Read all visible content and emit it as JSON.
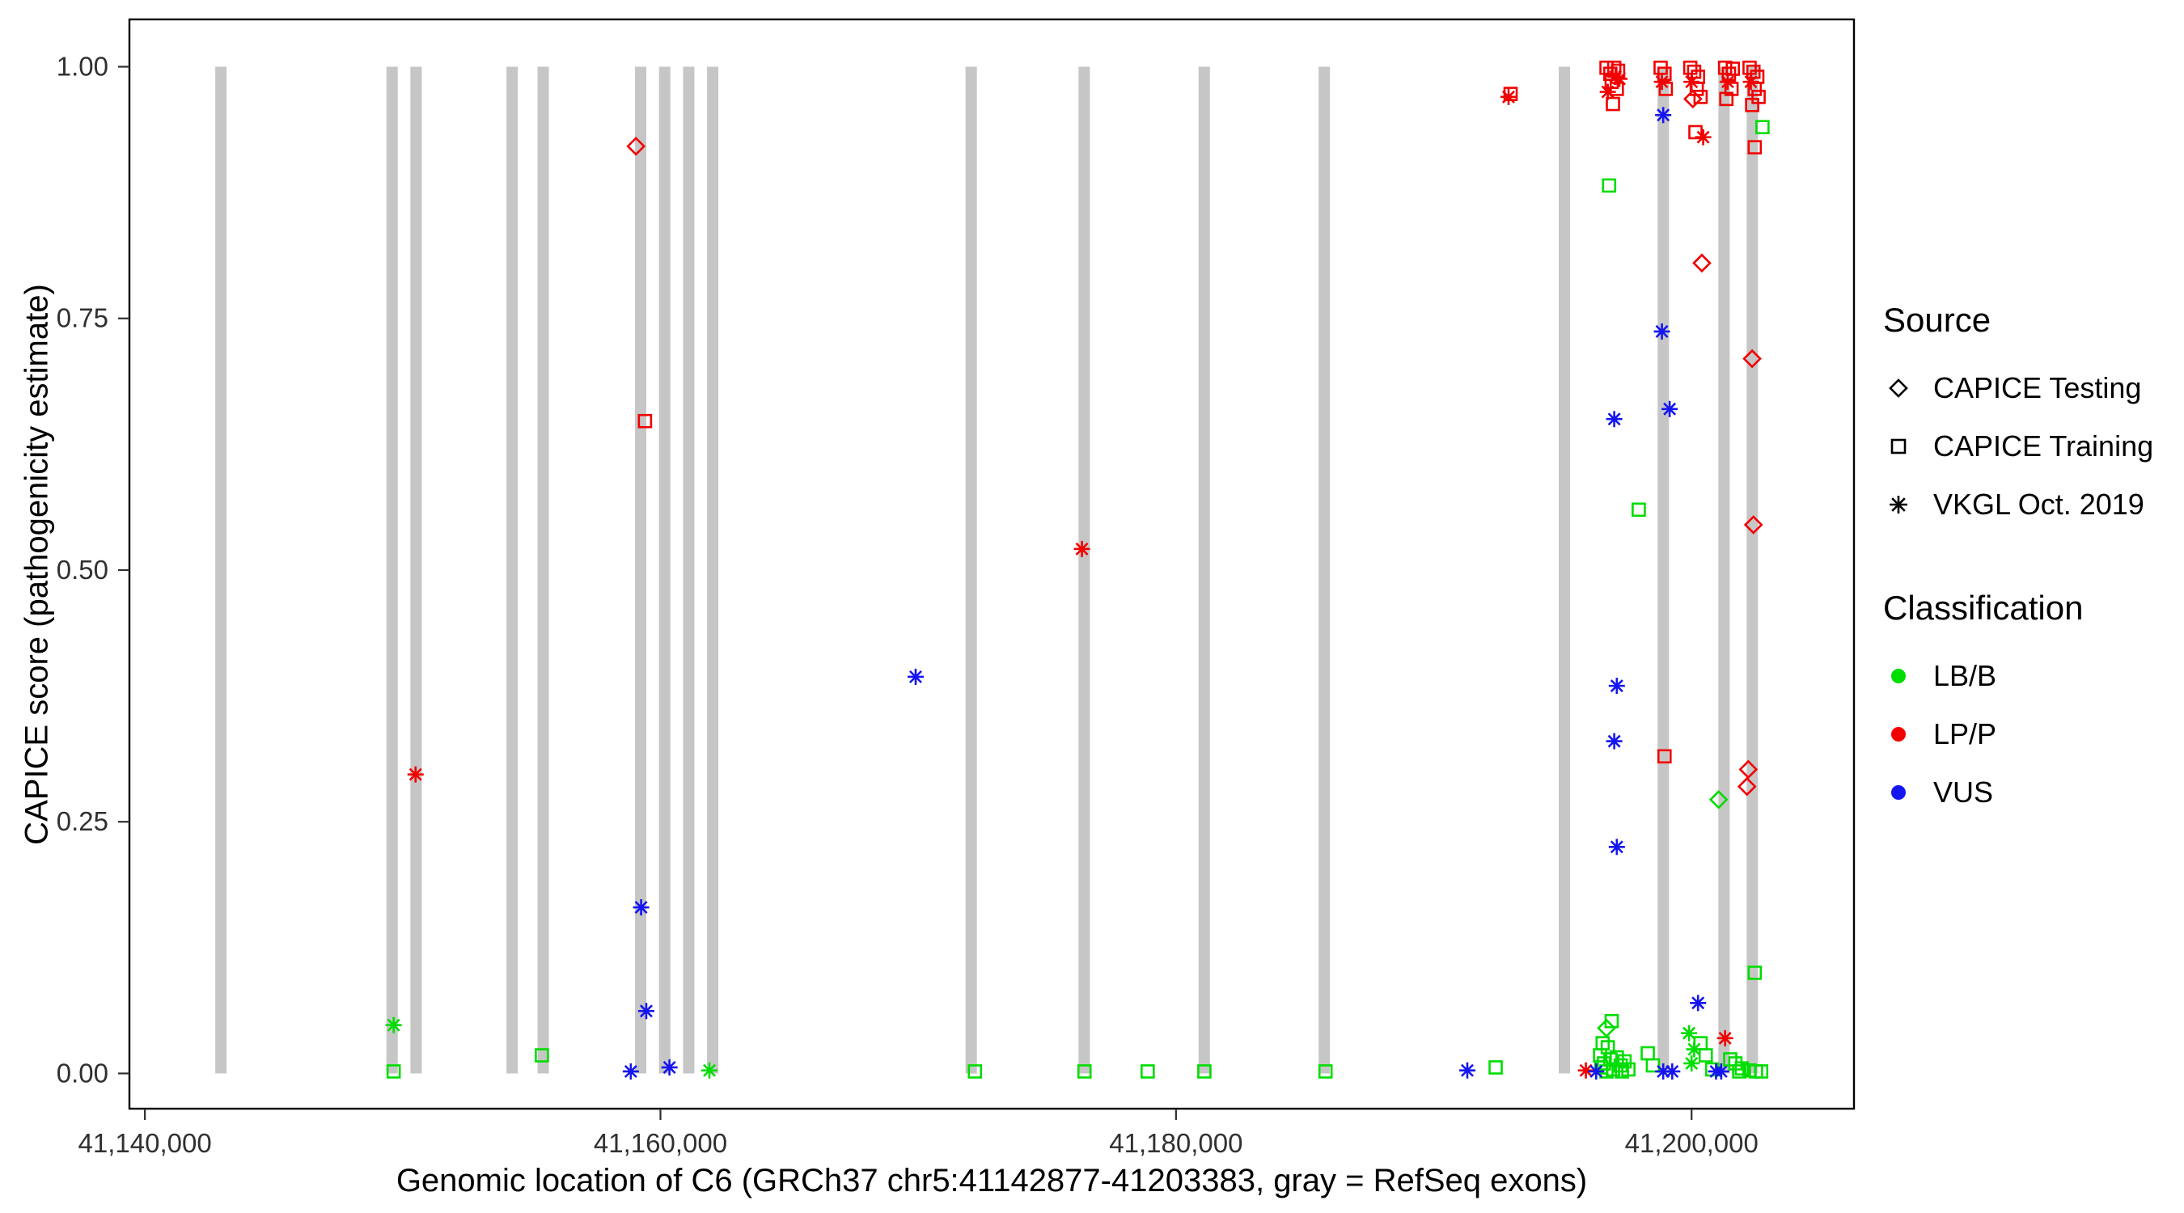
{
  "chart_data": {
    "type": "scatter",
    "title": "",
    "xlabel": "Genomic location of C6 (GRCh37 chr5:41142877-41203383, gray = RefSeq exons)",
    "ylabel": "CAPICE score (pathogenicity estimate)",
    "xlim": [
      41139400,
      41206300
    ],
    "ylim": [
      -0.035,
      1.047
    ],
    "grid": false,
    "xticks": [
      {
        "value": 41140000,
        "label": "41,140,000"
      },
      {
        "value": 41160000,
        "label": "41,160,000"
      },
      {
        "value": 41180000,
        "label": "41,180,000"
      },
      {
        "value": 41200000,
        "label": "41,200,000"
      }
    ],
    "yticks": [
      {
        "value": 0.0,
        "label": "0.00"
      },
      {
        "value": 0.25,
        "label": "0.25"
      },
      {
        "value": 0.5,
        "label": "0.50"
      },
      {
        "value": 0.75,
        "label": "0.75"
      },
      {
        "value": 1.0,
        "label": "1.00"
      }
    ],
    "exon_color": "#c6c6c6",
    "exon_half_width_bp": 220,
    "exons": [
      41142950,
      41149589,
      41150521,
      41154247,
      41155452,
      41159233,
      41160164,
      41161096,
      41162027,
      41172055,
      41176438,
      41181096,
      41185753,
      41195068,
      41198904,
      41201260,
      41202356
    ],
    "colors": {
      "LB/B": "#00dd00",
      "LP/P": "#f20000",
      "VUS": "#1515f0"
    },
    "shapes": {
      "testing": "diamond",
      "training": "square",
      "vkgl": "asterisk"
    },
    "legend": {
      "source": {
        "title": "Source",
        "items": [
          {
            "label": "CAPICE Testing",
            "shape": "diamond"
          },
          {
            "label": "CAPICE Training",
            "shape": "square"
          },
          {
            "label": "VKGL Oct. 2019",
            "shape": "asterisk"
          }
        ]
      },
      "classification": {
        "title": "Classification",
        "items": [
          {
            "label": "LB/B",
            "color": "#00dd00"
          },
          {
            "label": "LP/P",
            "color": "#f20000"
          },
          {
            "label": "VUS",
            "color": "#1515f0"
          }
        ]
      }
    },
    "points": [
      {
        "x": 41149650,
        "y": 0.048,
        "s": "vkgl",
        "c": "LB/B"
      },
      {
        "x": 41149650,
        "y": 0.002,
        "s": "training",
        "c": "LB/B"
      },
      {
        "x": 41150500,
        "y": 0.297,
        "s": "vkgl",
        "c": "LP/P"
      },
      {
        "x": 41155400,
        "y": 0.018,
        "s": "training",
        "c": "LB/B"
      },
      {
        "x": 41159050,
        "y": 0.921,
        "s": "testing",
        "c": "LP/P"
      },
      {
        "x": 41159400,
        "y": 0.648,
        "s": "training",
        "c": "LP/P"
      },
      {
        "x": 41159250,
        "y": 0.165,
        "s": "vkgl",
        "c": "VUS"
      },
      {
        "x": 41159450,
        "y": 0.062,
        "s": "vkgl",
        "c": "VUS"
      },
      {
        "x": 41158850,
        "y": 0.002,
        "s": "vkgl",
        "c": "VUS"
      },
      {
        "x": 41160350,
        "y": 0.006,
        "s": "vkgl",
        "c": "VUS"
      },
      {
        "x": 41161900,
        "y": 0.003,
        "s": "vkgl",
        "c": "LB/B"
      },
      {
        "x": 41169900,
        "y": 0.394,
        "s": "vkgl",
        "c": "VUS"
      },
      {
        "x": 41172200,
        "y": 0.002,
        "s": "training",
        "c": "LB/B"
      },
      {
        "x": 41176350,
        "y": 0.521,
        "s": "vkgl",
        "c": "LP/P"
      },
      {
        "x": 41176450,
        "y": 0.002,
        "s": "training",
        "c": "LB/B"
      },
      {
        "x": 41178900,
        "y": 0.002,
        "s": "training",
        "c": "LB/B"
      },
      {
        "x": 41181100,
        "y": 0.002,
        "s": "training",
        "c": "LB/B"
      },
      {
        "x": 41185800,
        "y": 0.002,
        "s": "training",
        "c": "LB/B"
      },
      {
        "x": 41191300,
        "y": 0.003,
        "s": "vkgl",
        "c": "VUS"
      },
      {
        "x": 41192400,
        "y": 0.006,
        "s": "training",
        "c": "LB/B"
      },
      {
        "x": 41192900,
        "y": 0.97,
        "s": "vkgl",
        "c": "LP/P"
      },
      {
        "x": 41192980,
        "y": 0.973,
        "s": "training",
        "c": "LP/P"
      },
      {
        "x": 41196700,
        "y": 0.999,
        "s": "training",
        "c": "LP/P"
      },
      {
        "x": 41196850,
        "y": 0.993,
        "s": "training",
        "c": "LP/P"
      },
      {
        "x": 41197000,
        "y": 0.999,
        "s": "training",
        "c": "LP/P"
      },
      {
        "x": 41197150,
        "y": 0.996,
        "s": "training",
        "c": "LP/P"
      },
      {
        "x": 41196900,
        "y": 0.985,
        "s": "training",
        "c": "LP/P"
      },
      {
        "x": 41197100,
        "y": 0.978,
        "s": "training",
        "c": "LP/P"
      },
      {
        "x": 41196750,
        "y": 0.975,
        "s": "vkgl",
        "c": "LP/P"
      },
      {
        "x": 41197050,
        "y": 0.99,
        "s": "vkgl",
        "c": "LP/P"
      },
      {
        "x": 41196950,
        "y": 0.963,
        "s": "training",
        "c": "LP/P"
      },
      {
        "x": 41197200,
        "y": 0.988,
        "s": "vkgl",
        "c": "LP/P"
      },
      {
        "x": 41198800,
        "y": 0.999,
        "s": "training",
        "c": "LP/P"
      },
      {
        "x": 41198950,
        "y": 0.993,
        "s": "training",
        "c": "LP/P"
      },
      {
        "x": 41198850,
        "y": 0.985,
        "s": "vkgl",
        "c": "LP/P"
      },
      {
        "x": 41199000,
        "y": 0.978,
        "s": "training",
        "c": "LP/P"
      },
      {
        "x": 41198900,
        "y": 0.952,
        "s": "vkgl",
        "c": "VUS"
      },
      {
        "x": 41199950,
        "y": 0.999,
        "s": "training",
        "c": "LP/P"
      },
      {
        "x": 41200100,
        "y": 0.995,
        "s": "training",
        "c": "LP/P"
      },
      {
        "x": 41200250,
        "y": 0.99,
        "s": "training",
        "c": "LP/P"
      },
      {
        "x": 41200000,
        "y": 0.985,
        "s": "vkgl",
        "c": "LP/P"
      },
      {
        "x": 41200200,
        "y": 0.978,
        "s": "training",
        "c": "LP/P"
      },
      {
        "x": 41200350,
        "y": 0.97,
        "s": "training",
        "c": "LP/P"
      },
      {
        "x": 41200050,
        "y": 0.968,
        "s": "testing",
        "c": "LP/P"
      },
      {
        "x": 41200150,
        "y": 0.935,
        "s": "training",
        "c": "LP/P"
      },
      {
        "x": 41200450,
        "y": 0.93,
        "s": "vkgl",
        "c": "LP/P"
      },
      {
        "x": 41201300,
        "y": 0.999,
        "s": "training",
        "c": "LP/P"
      },
      {
        "x": 41201450,
        "y": 0.993,
        "s": "training",
        "c": "LP/P"
      },
      {
        "x": 41201600,
        "y": 0.998,
        "s": "training",
        "c": "LP/P"
      },
      {
        "x": 41201400,
        "y": 0.985,
        "s": "vkgl",
        "c": "LP/P"
      },
      {
        "x": 41201550,
        "y": 0.978,
        "s": "training",
        "c": "LP/P"
      },
      {
        "x": 41201350,
        "y": 0.968,
        "s": "training",
        "c": "LP/P"
      },
      {
        "x": 41202250,
        "y": 0.999,
        "s": "training",
        "c": "LP/P"
      },
      {
        "x": 41202400,
        "y": 0.995,
        "s": "training",
        "c": "LP/P"
      },
      {
        "x": 41202550,
        "y": 0.99,
        "s": "training",
        "c": "LP/P"
      },
      {
        "x": 41202300,
        "y": 0.985,
        "s": "vkgl",
        "c": "LP/P"
      },
      {
        "x": 41202450,
        "y": 0.978,
        "s": "training",
        "c": "LP/P"
      },
      {
        "x": 41202600,
        "y": 0.97,
        "s": "training",
        "c": "LP/P"
      },
      {
        "x": 41202350,
        "y": 0.962,
        "s": "training",
        "c": "LP/P"
      },
      {
        "x": 41202450,
        "y": 0.92,
        "s": "training",
        "c": "LP/P"
      },
      {
        "x": 41202750,
        "y": 0.94,
        "s": "training",
        "c": "LB/B"
      },
      {
        "x": 41196800,
        "y": 0.882,
        "s": "training",
        "c": "LB/B"
      },
      {
        "x": 41200400,
        "y": 0.805,
        "s": "testing",
        "c": "LP/P"
      },
      {
        "x": 41198850,
        "y": 0.737,
        "s": "vkgl",
        "c": "VUS"
      },
      {
        "x": 41202350,
        "y": 0.71,
        "s": "testing",
        "c": "LP/P"
      },
      {
        "x": 41197000,
        "y": 0.65,
        "s": "vkgl",
        "c": "VUS"
      },
      {
        "x": 41199150,
        "y": 0.66,
        "s": "vkgl",
        "c": "VUS"
      },
      {
        "x": 41197950,
        "y": 0.56,
        "s": "training",
        "c": "LB/B"
      },
      {
        "x": 41202400,
        "y": 0.545,
        "s": "testing",
        "c": "LP/P"
      },
      {
        "x": 41197100,
        "y": 0.385,
        "s": "vkgl",
        "c": "VUS"
      },
      {
        "x": 41197000,
        "y": 0.33,
        "s": "vkgl",
        "c": "VUS"
      },
      {
        "x": 41198950,
        "y": 0.315,
        "s": "training",
        "c": "LP/P"
      },
      {
        "x": 41202200,
        "y": 0.302,
        "s": "testing",
        "c": "LP/P"
      },
      {
        "x": 41202150,
        "y": 0.285,
        "s": "testing",
        "c": "LP/P"
      },
      {
        "x": 41201050,
        "y": 0.272,
        "s": "testing",
        "c": "LB/B"
      },
      {
        "x": 41197100,
        "y": 0.225,
        "s": "vkgl",
        "c": "VUS"
      },
      {
        "x": 41202450,
        "y": 0.1,
        "s": "training",
        "c": "LB/B"
      },
      {
        "x": 41195900,
        "y": 0.003,
        "s": "vkgl",
        "c": "LP/P"
      },
      {
        "x": 41196700,
        "y": 0.045,
        "s": "testing",
        "c": "LB/B"
      },
      {
        "x": 41196900,
        "y": 0.052,
        "s": "training",
        "c": "LB/B"
      },
      {
        "x": 41196550,
        "y": 0.03,
        "s": "training",
        "c": "LB/B"
      },
      {
        "x": 41196750,
        "y": 0.026,
        "s": "training",
        "c": "LB/B"
      },
      {
        "x": 41196450,
        "y": 0.018,
        "s": "training",
        "c": "LB/B"
      },
      {
        "x": 41196850,
        "y": 0.014,
        "s": "training",
        "c": "LB/B"
      },
      {
        "x": 41196600,
        "y": 0.01,
        "s": "training",
        "c": "LB/B"
      },
      {
        "x": 41196500,
        "y": 0.006,
        "s": "training",
        "c": "LB/B"
      },
      {
        "x": 41196950,
        "y": 0.004,
        "s": "training",
        "c": "LB/B"
      },
      {
        "x": 41196700,
        "y": 0.002,
        "s": "training",
        "c": "LB/B"
      },
      {
        "x": 41197100,
        "y": 0.016,
        "s": "training",
        "c": "LB/B"
      },
      {
        "x": 41197250,
        "y": 0.008,
        "s": "training",
        "c": "LB/B"
      },
      {
        "x": 41197400,
        "y": 0.012,
        "s": "training",
        "c": "LB/B"
      },
      {
        "x": 41197550,
        "y": 0.004,
        "s": "training",
        "c": "LB/B"
      },
      {
        "x": 41197300,
        "y": 0.002,
        "s": "training",
        "c": "LB/B"
      },
      {
        "x": 41196300,
        "y": 0.002,
        "s": "vkgl",
        "c": "VUS"
      },
      {
        "x": 41198300,
        "y": 0.02,
        "s": "training",
        "c": "LB/B"
      },
      {
        "x": 41198500,
        "y": 0.008,
        "s": "training",
        "c": "LB/B"
      },
      {
        "x": 41198900,
        "y": 0.002,
        "s": "vkgl",
        "c": "VUS"
      },
      {
        "x": 41199250,
        "y": 0.002,
        "s": "vkgl",
        "c": "VUS"
      },
      {
        "x": 41199900,
        "y": 0.04,
        "s": "vkgl",
        "c": "LB/B"
      },
      {
        "x": 41200100,
        "y": 0.024,
        "s": "vkgl",
        "c": "LB/B"
      },
      {
        "x": 41200000,
        "y": 0.01,
        "s": "vkgl",
        "c": "LB/B"
      },
      {
        "x": 41200250,
        "y": 0.07,
        "s": "vkgl",
        "c": "VUS"
      },
      {
        "x": 41200350,
        "y": 0.03,
        "s": "training",
        "c": "LB/B"
      },
      {
        "x": 41200550,
        "y": 0.018,
        "s": "training",
        "c": "LB/B"
      },
      {
        "x": 41200800,
        "y": 0.004,
        "s": "training",
        "c": "LB/B"
      },
      {
        "x": 41200950,
        "y": 0.002,
        "s": "vkgl",
        "c": "VUS"
      },
      {
        "x": 41201150,
        "y": 0.002,
        "s": "vkgl",
        "c": "VUS"
      },
      {
        "x": 41201300,
        "y": 0.035,
        "s": "vkgl",
        "c": "LP/P"
      },
      {
        "x": 41201500,
        "y": 0.014,
        "s": "training",
        "c": "LB/B"
      },
      {
        "x": 41201700,
        "y": 0.01,
        "s": "training",
        "c": "LB/B"
      },
      {
        "x": 41201950,
        "y": 0.005,
        "s": "training",
        "c": "LB/B"
      },
      {
        "x": 41202250,
        "y": 0.003,
        "s": "training",
        "c": "LB/B"
      },
      {
        "x": 41202500,
        "y": 0.002,
        "s": "training",
        "c": "LB/B"
      },
      {
        "x": 41202700,
        "y": 0.002,
        "s": "training",
        "c": "LB/B"
      },
      {
        "x": 41201850,
        "y": 0.002,
        "s": "training",
        "c": "LB/B"
      }
    ]
  }
}
